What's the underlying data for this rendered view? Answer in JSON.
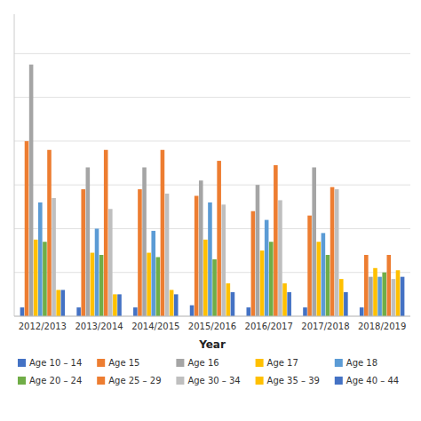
{
  "chart_data": {
    "type": "bar",
    "x_label": "Year",
    "categories": [
      "2012/2013",
      "2013/2014",
      "2014/2015",
      "2015/2016",
      "2016/2017",
      "2017/2018",
      "2018/2019"
    ],
    "series": [
      {
        "name": "Age 10 – 14",
        "color": "#4472C4",
        "values": [
          0.04,
          0.04,
          0.04,
          0.05,
          0.04,
          0.04,
          0.04
        ]
      },
      {
        "name": "Age 15",
        "color": "#ED7D31",
        "values": [
          0.8,
          0.58,
          0.58,
          0.55,
          0.48,
          0.46,
          0.28
        ]
      },
      {
        "name": "Age 16",
        "color": "#A5A5A5",
        "values": [
          1.15,
          0.68,
          0.68,
          0.62,
          0.6,
          0.68,
          0.18
        ]
      },
      {
        "name": "Age 17",
        "color": "#FFC000",
        "values": [
          0.35,
          0.29,
          0.29,
          0.35,
          0.3,
          0.34,
          0.22
        ]
      },
      {
        "name": "Age 18",
        "color": "#5B9BD5",
        "values": [
          0.52,
          0.4,
          0.39,
          0.52,
          0.44,
          0.38,
          0.18
        ]
      },
      {
        "name": "Age 20 – 24",
        "color": "#70AD47",
        "values": [
          0.34,
          0.28,
          0.27,
          0.26,
          0.34,
          0.28,
          0.2
        ]
      },
      {
        "name": "Age 25 – 29",
        "color": "#ED7D31",
        "values": [
          0.76,
          0.76,
          0.76,
          0.71,
          0.69,
          0.59,
          0.28
        ]
      },
      {
        "name": "Age 30 – 34",
        "color": "#BFBFBF",
        "values": [
          0.54,
          0.49,
          0.56,
          0.51,
          0.53,
          0.58,
          0.17
        ]
      },
      {
        "name": "Age 35 – 39",
        "color": "#FFC000",
        "values": [
          0.12,
          0.1,
          0.12,
          0.15,
          0.15,
          0.17,
          0.21
        ]
      },
      {
        "name": "Age 40 – 44",
        "color": "#4472C4",
        "values": [
          0.12,
          0.1,
          0.1,
          0.11,
          0.11,
          0.11,
          0.18
        ]
      }
    ],
    "ylim": [
      0,
      1.38
    ],
    "yticks": [
      0,
      0.2,
      0.4,
      0.6,
      0.8,
      1.0,
      1.2
    ],
    "grid": true,
    "tick_labels": "x",
    "legend": "bottom"
  }
}
